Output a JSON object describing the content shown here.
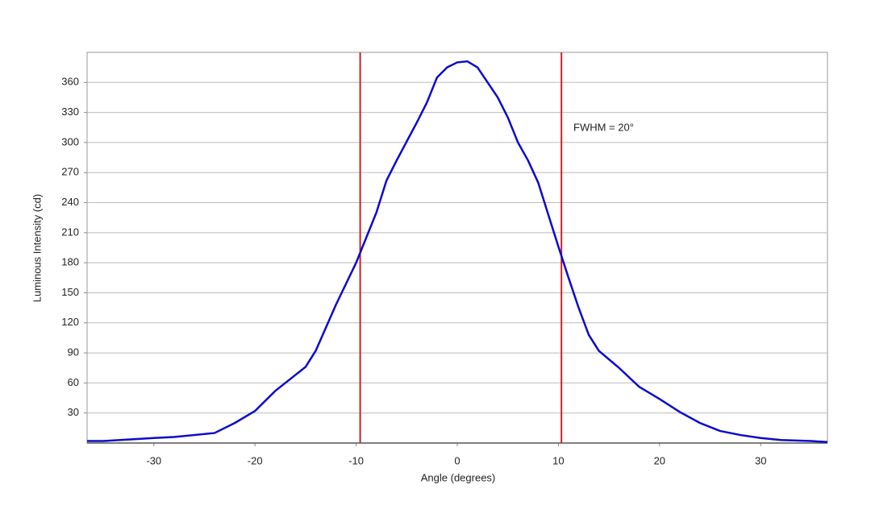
{
  "chart_data": {
    "type": "line",
    "xlabel": "Angle (degrees)",
    "ylabel": "Luminous Intensity (cd)",
    "x": [
      -36.6,
      -35,
      -30,
      -28,
      -25,
      -24,
      -22,
      -20,
      -18,
      -16,
      -15,
      -14,
      -12,
      -10,
      -9.6,
      -8,
      -7,
      -6,
      -4,
      -3,
      -2,
      -1,
      0,
      1,
      2,
      3,
      4,
      5,
      6,
      7,
      8,
      9,
      10,
      11,
      12,
      13,
      14,
      16,
      18,
      20,
      22,
      24,
      26,
      28,
      30,
      32,
      35,
      36.6
    ],
    "values": [
      2,
      2,
      5,
      6,
      9,
      10,
      20,
      32,
      52,
      68,
      76,
      92,
      138,
      180,
      190,
      230,
      262,
      282,
      320,
      340,
      365,
      375,
      380,
      381,
      375,
      360,
      345,
      325,
      300,
      282,
      260,
      228,
      196,
      165,
      135,
      108,
      92,
      75,
      56,
      44,
      31,
      20,
      12,
      8,
      5,
      3,
      2,
      1
    ],
    "color": "#0a0acc",
    "xlim": [
      -36.6,
      36.6
    ],
    "ylim": [
      0,
      390
    ],
    "xticks": [
      -30,
      -20,
      -10,
      0,
      10,
      20,
      30
    ],
    "yticks": [
      30,
      60,
      90,
      120,
      150,
      180,
      210,
      240,
      270,
      300,
      330,
      360
    ],
    "grid": true,
    "vlines": [
      {
        "x": -9.6,
        "color": "#cc2222"
      },
      {
        "x": 10.3,
        "color": "#cc2222"
      }
    ],
    "annotations": [
      "FWHM = 20°"
    ]
  }
}
